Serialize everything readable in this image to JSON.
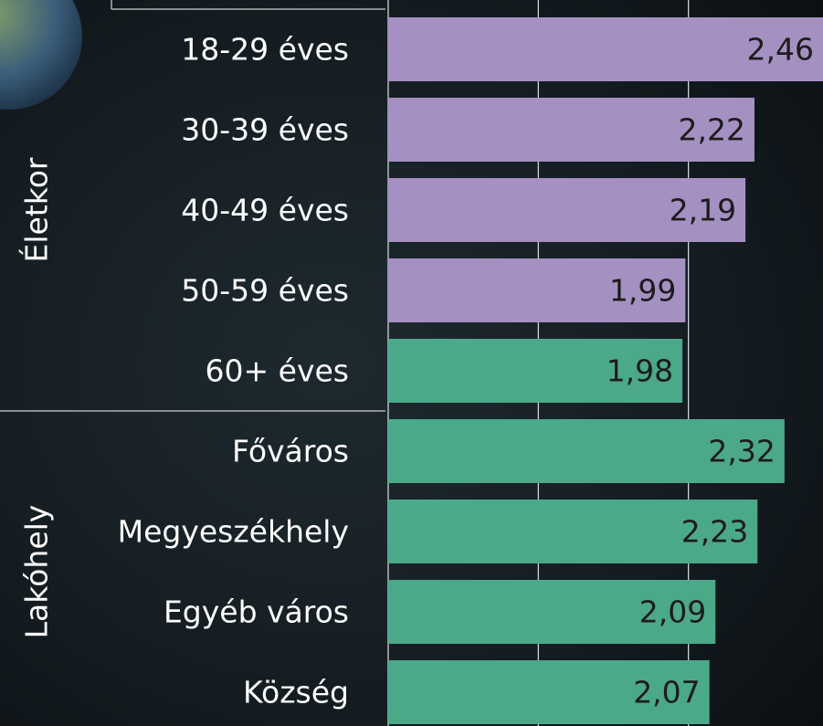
{
  "chart_data": {
    "type": "bar",
    "orientation": "horizontal",
    "xlim": [
      1,
      2.5
    ],
    "xticks": [
      1,
      1.5,
      2
    ],
    "grid": true,
    "groups": [
      {
        "name": "Életkor",
        "categories": [
          "18-29 éves",
          "30-39 éves",
          "40-49 éves",
          "50-59 éves",
          "60+ éves"
        ],
        "values": [
          2.46,
          2.22,
          2.19,
          1.99,
          1.98
        ],
        "value_labels": [
          "2,46",
          "2,22",
          "2,19",
          "1,99",
          "1,98"
        ],
        "colors": [
          "#a590c2",
          "#a590c2",
          "#a590c2",
          "#a590c2",
          "#4ba98a"
        ]
      },
      {
        "name": "Lakóhely",
        "categories": [
          "Főváros",
          "Megyeszékhely",
          "Egyéb város",
          "Község"
        ],
        "values": [
          2.32,
          2.23,
          2.09,
          2.07
        ],
        "value_labels": [
          "2,32",
          "2,23",
          "2,09",
          "2,07"
        ],
        "colors": [
          "#4ba98a",
          "#4ba98a",
          "#4ba98a",
          "#4ba98a"
        ]
      }
    ]
  }
}
